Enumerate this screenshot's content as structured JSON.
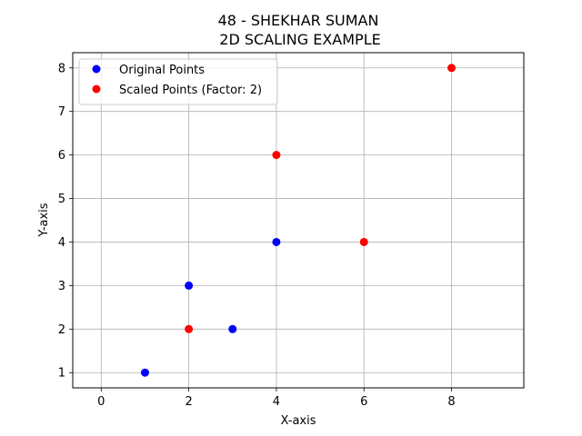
{
  "chart_data": {
    "type": "scatter",
    "title": [
      "48 - SHEKHAR SUMAN",
      "2D SCALING EXAMPLE"
    ],
    "xlabel": "X-axis",
    "ylabel": "Y-axis",
    "xlim": [
      -0.65,
      9.65
    ],
    "ylim": [
      0.65,
      8.35
    ],
    "xticks": [
      0,
      2,
      4,
      6,
      8
    ],
    "yticks": [
      1,
      2,
      3,
      4,
      5,
      6,
      7,
      8
    ],
    "grid": true,
    "legend_position": "top-left",
    "series": [
      {
        "name": "Original Points",
        "color": "#0000ff",
        "points": [
          [
            1,
            1
          ],
          [
            2,
            3
          ],
          [
            3,
            2
          ],
          [
            4,
            4
          ]
        ]
      },
      {
        "name": "Scaled Points (Factor: 2)",
        "color": "#ff0000",
        "points": [
          [
            2,
            2
          ],
          [
            4,
            6
          ],
          [
            6,
            4
          ],
          [
            8,
            8
          ]
        ]
      }
    ]
  }
}
